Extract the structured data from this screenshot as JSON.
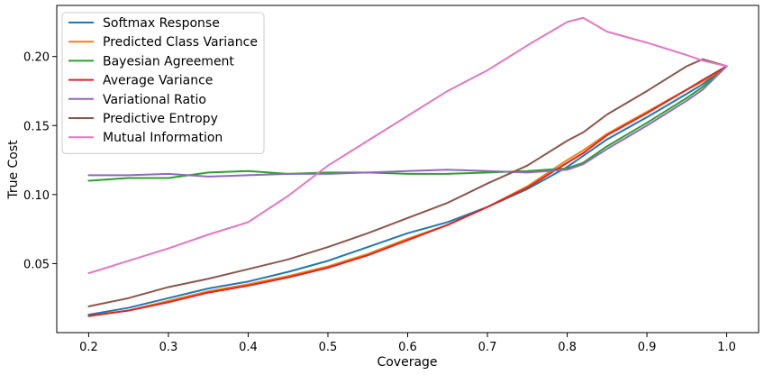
{
  "chart_data": {
    "type": "line",
    "title": "",
    "xlabel": "Coverage",
    "ylabel": "True Cost",
    "xlim": [
      0.16,
      1.04
    ],
    "ylim": [
      0.0,
      0.237
    ],
    "xticks": [
      {
        "value": 0.2,
        "label": "0.2"
      },
      {
        "value": 0.3,
        "label": "0.3"
      },
      {
        "value": 0.4,
        "label": "0.4"
      },
      {
        "value": 0.5,
        "label": "0.5"
      },
      {
        "value": 0.6,
        "label": "0.6"
      },
      {
        "value": 0.7,
        "label": "0.7"
      },
      {
        "value": 0.8,
        "label": "0.8"
      },
      {
        "value": 0.9,
        "label": "0.9"
      },
      {
        "value": 1.0,
        "label": "1.0"
      }
    ],
    "yticks": [
      {
        "value": 0.05,
        "label": "0.05"
      },
      {
        "value": 0.1,
        "label": "0.10"
      },
      {
        "value": 0.15,
        "label": "0.15"
      },
      {
        "value": 0.2,
        "label": "0.20"
      }
    ],
    "grid": false,
    "legend_position": "top-left",
    "x": [
      0.2,
      0.25,
      0.3,
      0.35,
      0.4,
      0.45,
      0.5,
      0.55,
      0.6,
      0.65,
      0.7,
      0.75,
      0.8,
      0.82,
      0.85,
      0.9,
      0.95,
      0.97,
      1.0
    ],
    "series": [
      {
        "name": "Softmax Response",
        "color": "#1f77b4",
        "values": [
          0.013,
          0.018,
          0.025,
          0.032,
          0.037,
          0.044,
          0.052,
          0.062,
          0.072,
          0.08,
          0.091,
          0.104,
          0.12,
          0.128,
          0.14,
          0.156,
          0.173,
          0.18,
          0.193
        ]
      },
      {
        "name": "Predicted Class Variance",
        "color": "#ff7f0e",
        "values": [
          0.012,
          0.016,
          0.023,
          0.03,
          0.035,
          0.041,
          0.048,
          0.057,
          0.068,
          0.078,
          0.091,
          0.106,
          0.125,
          0.132,
          0.144,
          0.16,
          0.176,
          0.182,
          0.193
        ]
      },
      {
        "name": "Bayesian Agreement",
        "color": "#2ca02c",
        "values": [
          0.11,
          0.112,
          0.112,
          0.116,
          0.117,
          0.115,
          0.116,
          0.116,
          0.115,
          0.115,
          0.116,
          0.117,
          0.119,
          0.123,
          0.135,
          0.152,
          0.17,
          0.178,
          0.193
        ]
      },
      {
        "name": "Average Variance",
        "color": "#d62728",
        "values": [
          0.012,
          0.016,
          0.022,
          0.029,
          0.034,
          0.04,
          0.047,
          0.056,
          0.067,
          0.078,
          0.091,
          0.105,
          0.123,
          0.13,
          0.143,
          0.159,
          0.176,
          0.183,
          0.193
        ]
      },
      {
        "name": "Variational Ratio",
        "color": "#9467bd",
        "values": [
          0.114,
          0.114,
          0.115,
          0.113,
          0.114,
          0.115,
          0.115,
          0.116,
          0.117,
          0.118,
          0.117,
          0.116,
          0.118,
          0.122,
          0.133,
          0.15,
          0.168,
          0.176,
          0.193
        ]
      },
      {
        "name": "Predictive Entropy",
        "color": "#8c564b",
        "values": [
          0.019,
          0.025,
          0.033,
          0.039,
          0.046,
          0.053,
          0.062,
          0.072,
          0.083,
          0.094,
          0.108,
          0.121,
          0.139,
          0.145,
          0.158,
          0.175,
          0.193,
          0.198,
          0.193
        ]
      },
      {
        "name": "Mutual Information",
        "color": "#e377c2",
        "values": [
          0.043,
          0.052,
          0.061,
          0.071,
          0.08,
          0.099,
          0.121,
          0.139,
          0.157,
          0.175,
          0.19,
          0.208,
          0.225,
          0.228,
          0.218,
          0.21,
          0.201,
          0.197,
          0.193
        ]
      }
    ]
  }
}
